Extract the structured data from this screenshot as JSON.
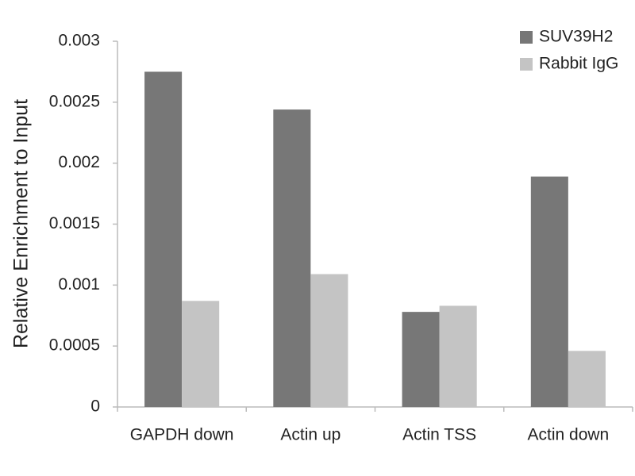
{
  "chart_data": {
    "type": "bar",
    "y_label": "Relative Enrichment to Input",
    "categories": [
      "GAPDH down",
      "Actin up",
      "Actin TSS",
      "Actin down"
    ],
    "series": [
      {
        "name": "SUV39H2",
        "color": "#777777",
        "values": [
          0.00275,
          0.00244,
          0.00078,
          0.00189
        ]
      },
      {
        "name": "Rabbit IgG",
        "color": "#c4c4c4",
        "values": [
          0.00087,
          0.00109,
          0.00083,
          0.00046
        ]
      }
    ],
    "ylim": [
      0,
      0.003
    ],
    "yticks": [
      0,
      0.0005,
      0.001,
      0.0015,
      0.002,
      0.0025,
      0.003
    ],
    "grid": false,
    "legend": "top-right"
  }
}
